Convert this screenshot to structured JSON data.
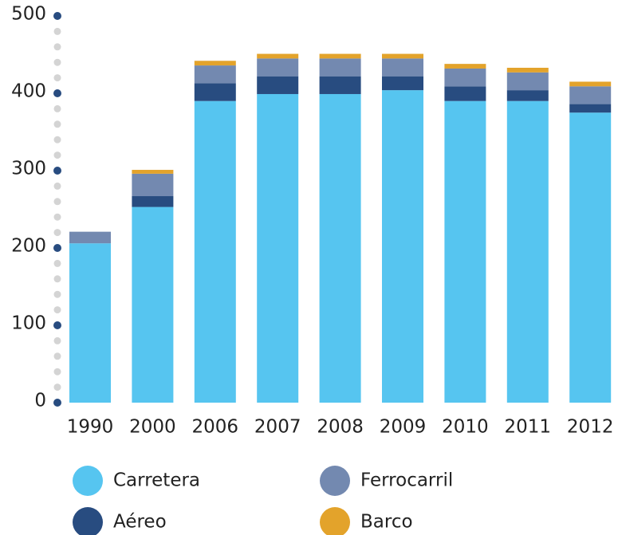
{
  "chart_data": {
    "type": "bar",
    "stacked": true,
    "categories": [
      "1990",
      "2000",
      "2006",
      "2007",
      "2008",
      "2009",
      "2010",
      "2011",
      "2012"
    ],
    "series": [
      {
        "name": "Carretera",
        "color": "#56c5f0",
        "values": [
          206,
          253,
          390,
          399,
          399,
          404,
          390,
          390,
          375
        ]
      },
      {
        "name": "Aéreo",
        "color": "#284c80",
        "values": [
          0,
          14,
          23,
          23,
          23,
          18,
          19,
          14,
          11
        ]
      },
      {
        "name": "Ferrocarril",
        "color": "#7389b0",
        "values": [
          15,
          29,
          23,
          23,
          23,
          23,
          23,
          23,
          23
        ]
      },
      {
        "name": "Barco",
        "color": "#e3a32b",
        "values": [
          0,
          5,
          6,
          6,
          6,
          6,
          6,
          6,
          6
        ]
      }
    ],
    "ylim": [
      0,
      500
    ],
    "yticks": [
      0,
      100,
      200,
      300,
      400,
      500
    ]
  }
}
